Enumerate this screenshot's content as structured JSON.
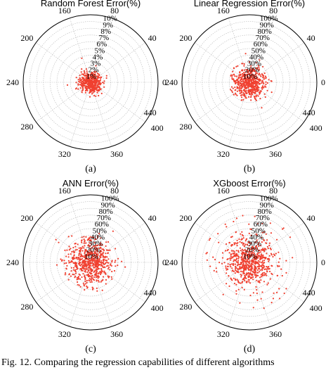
{
  "figure_caption": "Fig. 12.   Comparing the regression capabilities of different algorithms",
  "chart_data": [
    {
      "type": "scatter",
      "projection": "polar",
      "title": "Random Forest Error(%)",
      "panel_label": "(a)",
      "angle_tick_labels": [
        "0",
        "40",
        "80",
        "160",
        "200",
        "240",
        "280",
        "320",
        "360",
        "400",
        "440"
      ],
      "radial_tick_labels": [
        "1%",
        "2%",
        "3%",
        "4%",
        "5%",
        "6%",
        "7%",
        "8%",
        "9%",
        "10%"
      ],
      "rlim": [
        0,
        10
      ],
      "grid": true,
      "marker_color": "#f04030",
      "points": {
        "count": 420,
        "spread_fraction": 0.085,
        "outlier_count": 4,
        "outlier_fraction": 0.16
      }
    },
    {
      "type": "scatter",
      "projection": "polar",
      "title": "Linear Regression Error(%)",
      "panel_label": "(b)",
      "angle_tick_labels": [
        "0",
        "40",
        "80",
        "160",
        "200",
        "240",
        "280",
        "320",
        "360",
        "400",
        "440"
      ],
      "radial_tick_labels": [
        "10%",
        "20%",
        "30%",
        "40%",
        "50%",
        "60%",
        "70%",
        "80%",
        "90%",
        "100%"
      ],
      "rlim": [
        0,
        100
      ],
      "grid": true,
      "marker_color": "#f04030",
      "points": {
        "count": 520,
        "spread_fraction": 0.11,
        "outlier_count": 30,
        "outlier_fraction": 0.3
      }
    },
    {
      "type": "scatter",
      "projection": "polar",
      "title": "ANN Error(%)",
      "panel_label": "(c)",
      "angle_tick_labels": [
        "0",
        "40",
        "80",
        "160",
        "200",
        "240",
        "280",
        "320",
        "360",
        "400",
        "440"
      ],
      "radial_tick_labels": [
        "10%",
        "20%",
        "30%",
        "40%",
        "50%",
        "60%",
        "70%",
        "80%",
        "90%",
        "100%"
      ],
      "rlim": [
        0,
        100
      ],
      "grid": true,
      "marker_color": "#f04030",
      "points": {
        "count": 600,
        "spread_fraction": 0.16,
        "outlier_count": 40,
        "outlier_fraction": 0.42
      }
    },
    {
      "type": "scatter",
      "projection": "polar",
      "title": "XGboost Error(%)",
      "panel_label": "(d)",
      "angle_tick_labels": [
        "0",
        "40",
        "80",
        "160",
        "200",
        "240",
        "280",
        "320",
        "360",
        "400",
        "440"
      ],
      "radial_tick_labels": [
        "10%",
        "20%",
        "30%",
        "40%",
        "50%",
        "60%",
        "70%",
        "80%",
        "90%",
        "100%"
      ],
      "rlim": [
        0,
        100
      ],
      "grid": true,
      "marker_color": "#f04030",
      "points": {
        "count": 620,
        "spread_fraction": 0.17,
        "outlier_count": 70,
        "outlier_fraction": 0.75
      }
    }
  ]
}
